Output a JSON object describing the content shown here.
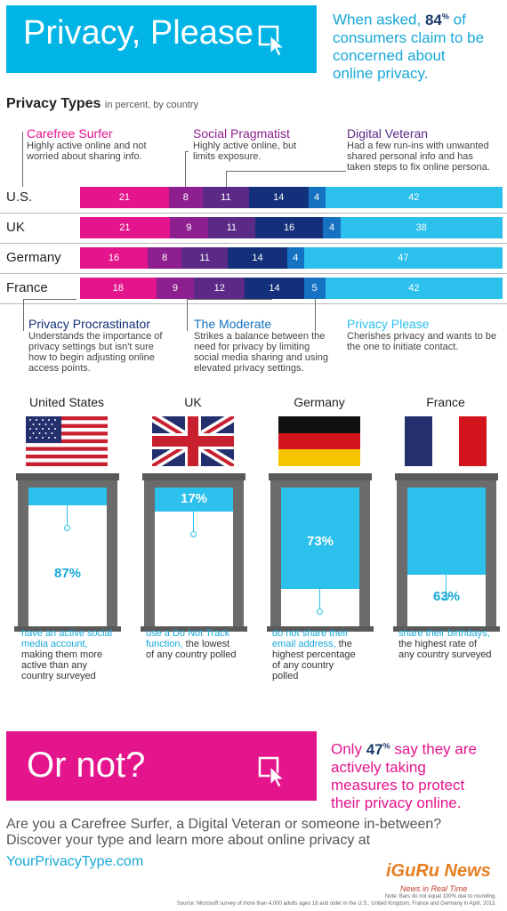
{
  "header": {
    "title": "Privacy, Please",
    "stat_lead": "When asked,",
    "stat_value": "84",
    "stat_unit": "%",
    "stat_rest_1": "of",
    "stat_rest_2": "consumers claim to be",
    "stat_rest_3": "concerned about",
    "stat_rest_4": "online privacy."
  },
  "section": {
    "title": "Privacy Types",
    "subtitle": "in percent, by country"
  },
  "types_top": [
    {
      "name": "Carefree Surfer",
      "desc_1": "Highly active online and not",
      "desc_2": "worried about sharing info.",
      "desc_3": ""
    },
    {
      "name": "Social Pragmatist",
      "desc_1": "Highly active online, but",
      "desc_2": "limits exposure.",
      "desc_3": ""
    },
    {
      "name": "Digital Veteran",
      "desc_1": "Had a few run-ins with unwanted",
      "desc_2": "shared personal info and has",
      "desc_3": "taken steps to fix online persona."
    }
  ],
  "types_bottom": [
    {
      "name": "Privacy Procrastinator",
      "desc_1": "Understands the importance of",
      "desc_2": "privacy settings but isn't sure",
      "desc_3": "how to begin adjusting online",
      "desc_4": "access points."
    },
    {
      "name": "The Moderate",
      "desc_1": "Strikes a balance between the",
      "desc_2": "need for privacy by limiting",
      "desc_3": "social media sharing and using",
      "desc_4": "elevated privacy settings."
    },
    {
      "name": "Privacy Please",
      "desc_1": "Cherishes privacy and wants to be",
      "desc_2": "the one to initiate contact.",
      "desc_3": "",
      "desc_4": ""
    }
  ],
  "chart_data": {
    "type": "bar",
    "orientation": "horizontal-stacked",
    "categories": [
      "U.S.",
      "UK",
      "Germany",
      "France"
    ],
    "series": [
      {
        "name": "Carefree Surfer",
        "color": "#e4148c",
        "values": [
          21,
          21,
          16,
          18
        ]
      },
      {
        "name": "Social Pragmatist",
        "color": "#8e1f8f",
        "values": [
          8,
          9,
          8,
          9
        ]
      },
      {
        "name": "Digital Veteran",
        "color": "#5b2a86",
        "values": [
          11,
          11,
          11,
          12
        ]
      },
      {
        "name": "Privacy Procrastinator",
        "color": "#14307a",
        "values": [
          14,
          16,
          14,
          14
        ]
      },
      {
        "name": "The Moderate",
        "color": "#1572c2",
        "values": [
          4,
          4,
          4,
          5
        ]
      },
      {
        "name": "Privacy Please",
        "color": "#2cc0ec",
        "values": [
          42,
          38,
          47,
          42
        ]
      }
    ],
    "title": "Privacy Types",
    "subtitle": "in percent, by country",
    "value_labels": "inside",
    "grid": false
  },
  "countries": [
    {
      "name": "United States",
      "flag": "us-flag",
      "pct": "87%",
      "blind_fraction": 0.13,
      "note_hl_1": "have an active social",
      "note_hl_2": "media account,",
      "note_1": "making them more",
      "note_2": "active than any",
      "note_3": "country surveyed"
    },
    {
      "name": "UK",
      "flag": "uk-flag",
      "pct": "17%",
      "blind_fraction": 0.17,
      "note_hl_1": "use a Do Not Track",
      "note_hl_2": "function,",
      "note_hl_2_rest": " the lowest",
      "note_1": "of any country polled",
      "note_2": "",
      "note_3": ""
    },
    {
      "name": "Germany",
      "flag": "germany-flag",
      "pct": "73%",
      "blind_fraction": 0.73,
      "note_hl_1": "do not share their",
      "note_hl_2": "email address,",
      "note_hl_2_rest": " the",
      "note_1": "highest percentage",
      "note_2": "of any country",
      "note_3": "polled"
    },
    {
      "name": "France",
      "flag": "france-flag",
      "pct": "63%",
      "blind_fraction": 0.63,
      "note_hl_1": "share their birthdays,",
      "note_hl_2": "",
      "note_1": "the highest rate of",
      "note_2": "any country surveyed",
      "note_3": ""
    }
  ],
  "ornot": {
    "title": "Or not?",
    "lead": "Only",
    "value": "47",
    "unit": "%",
    "rest_1": "say they are",
    "rest_2": "actively taking",
    "rest_3": "measures to protect",
    "rest_4": "their privacy online."
  },
  "bottom": {
    "line_1": "Are you a Carefree Surfer, a Digital Veteran or someone in-between?",
    "line_2": "Discover your type and learn more about online privacy at",
    "link": "YourPrivacyType.com"
  },
  "logo": {
    "word": "iGuRu News",
    "tagline": "News in Real Time"
  },
  "footnotes": {
    "note": "Note: Bars do not equal 100% due to rounding.",
    "source": "Source: Microsoft survey of more than 4,000 adults ages 18 and older in the U.S., United Kingdom, France and Germany in April, 2013."
  },
  "colors": {
    "cyan": "#00b4e6",
    "magenta": "#e4148c",
    "navy": "#1b3a6b",
    "window_gray": "#6b6b6b"
  }
}
